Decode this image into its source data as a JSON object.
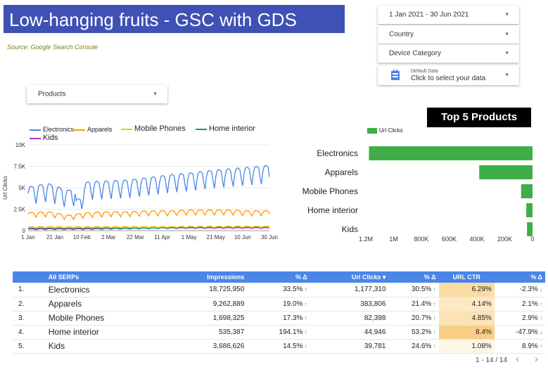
{
  "title": "Low-hanging fruits - GSC with GDS",
  "source": "Source: Google Search Console",
  "controls": {
    "date_range": "1 Jan 2021 - 30 Jun 2021",
    "country": "Country",
    "device": "Device Category",
    "data_small": "Default Data",
    "data_main": "Click to select your data",
    "products": "Products"
  },
  "top5_title": "Top 5 Products",
  "line_legend": [
    "Electronics",
    "Apparels",
    "Mobile Phones",
    "Home interior",
    "Kids"
  ],
  "bar_legend": "Url Clicks",
  "chart_data": [
    {
      "type": "line",
      "ylabel": "Url Clicks",
      "ylim": [
        0,
        10000
      ],
      "y_ticks": [
        "0",
        "2.5K",
        "5K",
        "7.5K",
        "10K"
      ],
      "x_ticks": [
        "1 Jan",
        "21 Jan",
        "10 Feb",
        "2 Mar",
        "22 Mar",
        "11 Apr",
        "1 May",
        "21 May",
        "10 Jun",
        "30 Jun"
      ],
      "series": [
        {
          "name": "Electronics",
          "color": "#4a86e8",
          "base": [
            4000,
            4400,
            3600,
            4600,
            4700,
            4800,
            5100,
            5400,
            5600,
            5900,
            6100,
            6300,
            6500
          ],
          "amp": 1600
        },
        {
          "name": "Apparels",
          "color": "#ff9900",
          "base": [
            1800,
            1900,
            1500,
            1800,
            1900,
            1900,
            2000,
            2000,
            2100,
            2100,
            2100,
            2000,
            2000
          ],
          "amp": 450
        },
        {
          "name": "Mobile Phones",
          "color": "#f2c100",
          "base": [
            350,
            400,
            380,
            380,
            400,
            400,
            420,
            420,
            420,
            420,
            430,
            430,
            430
          ],
          "amp": 120
        },
        {
          "name": "Home interior",
          "color": "#0f9d58",
          "base": [
            150,
            160,
            160,
            170,
            200,
            220,
            260,
            300,
            340,
            380,
            400,
            420,
            430
          ],
          "amp": 80
        },
        {
          "name": "Kids",
          "color": "#ab30c4",
          "base": [
            250,
            260,
            250,
            260,
            270,
            270,
            280,
            280,
            290,
            290,
            300,
            300,
            300
          ],
          "amp": 70
        }
      ]
    },
    {
      "type": "bar",
      "orientation": "horizontal",
      "categories": [
        "Electronics",
        "Apparels",
        "Mobile Phones",
        "Home interior",
        "Kids"
      ],
      "values": [
        1177310,
        383806,
        82398,
        44946,
        39781
      ],
      "x_ticks": [
        "1.2M",
        "1M",
        "800K",
        "600K",
        "400K",
        "200K",
        "0"
      ],
      "xlim": [
        0,
        1200000
      ],
      "color": "#3fae49"
    }
  ],
  "table": {
    "headers": [
      "All SERPs",
      "Impressions",
      "% Δ",
      "Url Clicks ▾",
      "% Δ",
      "URL CTR",
      "% Δ"
    ],
    "rows": [
      {
        "n": "1.",
        "name": "Electronics",
        "imp": "18,725,950",
        "impd": "33.5%",
        "impd_dir": "up",
        "clk": "1,177,310",
        "clkd": "30.5%",
        "clkd_dir": "up",
        "ctr": "6.29%",
        "ctr_bg": "#fbdca3",
        "ctrd": "-2.3%",
        "ctrd_dir": "down"
      },
      {
        "n": "2.",
        "name": "Apparels",
        "imp": "9,262,889",
        "impd": "19.0%",
        "impd_dir": "up",
        "clk": "383,806",
        "clkd": "21.4%",
        "clkd_dir": "up",
        "ctr": "4.14%",
        "ctr_bg": "#fde9c4",
        "ctrd": "2.1%",
        "ctrd_dir": "up"
      },
      {
        "n": "3.",
        "name": "Mobile Phones",
        "imp": "1,698,325",
        "impd": "17.3%",
        "impd_dir": "up",
        "clk": "82,398",
        "clkd": "20.7%",
        "clkd_dir": "up",
        "ctr": "4.85%",
        "ctr_bg": "#fce3b6",
        "ctrd": "2.9%",
        "ctrd_dir": "up"
      },
      {
        "n": "4.",
        "name": "Home interior",
        "imp": "535,387",
        "impd": "194.1%",
        "impd_dir": "up",
        "clk": "44,946",
        "clkd": "53.2%",
        "clkd_dir": "up",
        "ctr": "8.4%",
        "ctr_bg": "#f9cf87",
        "ctrd": "-47.9%",
        "ctrd_dir": "down"
      },
      {
        "n": "5.",
        "name": "Kids",
        "imp": "3,686,626",
        "impd": "14.5%",
        "impd_dir": "up",
        "clk": "39,781",
        "clkd": "24.6%",
        "clkd_dir": "up",
        "ctr": "1.08%",
        "ctr_bg": "#fdf6e6",
        "ctrd": "8.9%",
        "ctrd_dir": "up"
      }
    ],
    "pager": "1 - 14 / 14",
    "prev": "‹",
    "next": "›"
  }
}
